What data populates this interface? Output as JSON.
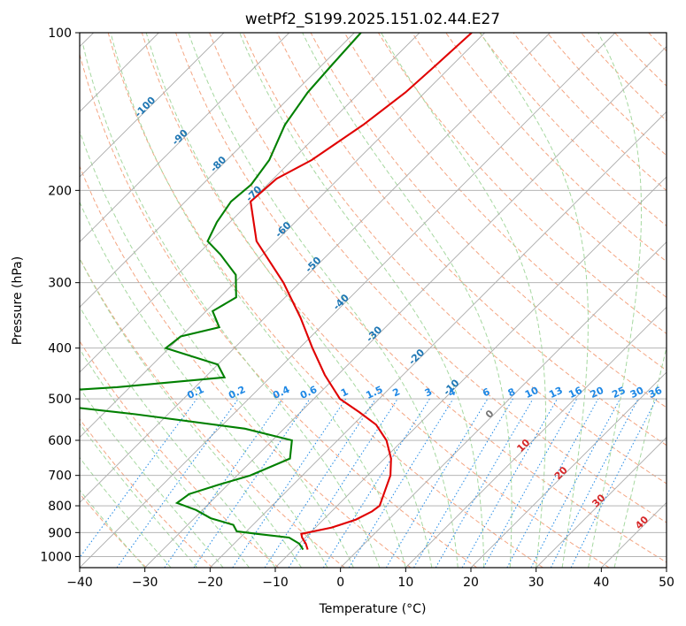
{
  "chart_data": {
    "type": "line",
    "title": "wetPf2_S199.2025.151.02.44.E27",
    "xlabel": "Temperature (°C)",
    "ylabel": "Pressure (hPa)",
    "xlim": [
      -40,
      50
    ],
    "ylim": [
      1050,
      100
    ],
    "y_scale": "log",
    "skew": true,
    "grid": true,
    "x_ticks": [
      -40,
      -30,
      -20,
      -10,
      0,
      10,
      20,
      30,
      40,
      50
    ],
    "y_ticks": [
      1000,
      900,
      800,
      700,
      600,
      500,
      400,
      300,
      200,
      100
    ],
    "series": [
      {
        "role": "temperature",
        "color": "#e00000",
        "points": [
          {
            "p": 970,
            "t": -7.8
          },
          {
            "p": 945,
            "t": -9.0
          },
          {
            "p": 920,
            "t": -10.5
          },
          {
            "p": 905,
            "t": -11.2
          },
          {
            "p": 880,
            "t": -7.5
          },
          {
            "p": 850,
            "t": -5.0
          },
          {
            "p": 820,
            "t": -3.8
          },
          {
            "p": 800,
            "t": -3.5
          },
          {
            "p": 700,
            "t": -6.5
          },
          {
            "p": 650,
            "t": -9.0
          },
          {
            "p": 600,
            "t": -12.5
          },
          {
            "p": 560,
            "t": -16.5
          },
          {
            "p": 530,
            "t": -21.0
          },
          {
            "p": 500,
            "t": -26.0
          },
          {
            "p": 450,
            "t": -32.0
          },
          {
            "p": 400,
            "t": -38.0
          },
          {
            "p": 350,
            "t": -44.5
          },
          {
            "p": 300,
            "t": -52.5
          },
          {
            "p": 250,
            "t": -63.0
          },
          {
            "p": 210,
            "t": -70.0
          },
          {
            "p": 190,
            "t": -69.5
          },
          {
            "p": 175,
            "t": -67.0
          },
          {
            "p": 150,
            "t": -64.5
          },
          {
            "p": 130,
            "t": -63.0
          },
          {
            "p": 115,
            "t": -62.5
          },
          {
            "p": 100,
            "t": -62.0
          }
        ]
      },
      {
        "role": "dewpoint",
        "color": "#008000",
        "points": [
          {
            "p": 970,
            "t": -8.5
          },
          {
            "p": 945,
            "t": -10.0
          },
          {
            "p": 920,
            "t": -12.5
          },
          {
            "p": 905,
            "t": -18.0
          },
          {
            "p": 895,
            "t": -21.5
          },
          {
            "p": 870,
            "t": -23.0
          },
          {
            "p": 845,
            "t": -27.5
          },
          {
            "p": 815,
            "t": -31.0
          },
          {
            "p": 790,
            "t": -35.0
          },
          {
            "p": 760,
            "t": -34.5
          },
          {
            "p": 730,
            "t": -31.5
          },
          {
            "p": 700,
            "t": -28.0
          },
          {
            "p": 650,
            "t": -24.5
          },
          {
            "p": 600,
            "t": -27.0
          },
          {
            "p": 570,
            "t": -36.0
          },
          {
            "p": 535,
            "t": -55.0
          },
          {
            "p": 505,
            "t": -75.0
          },
          {
            "p": 497,
            "t": -85.0
          },
          {
            "p": 475,
            "t": -62.0
          },
          {
            "p": 455,
            "t": -47.0
          },
          {
            "p": 430,
            "t": -50.0
          },
          {
            "p": 400,
            "t": -60.5
          },
          {
            "p": 380,
            "t": -60.0
          },
          {
            "p": 365,
            "t": -55.5
          },
          {
            "p": 340,
            "t": -59.0
          },
          {
            "p": 320,
            "t": -57.5
          },
          {
            "p": 290,
            "t": -61.0
          },
          {
            "p": 265,
            "t": -66.5
          },
          {
            "p": 250,
            "t": -70.5
          },
          {
            "p": 230,
            "t": -72.0
          },
          {
            "p": 210,
            "t": -73.0
          },
          {
            "p": 195,
            "t": -72.5
          },
          {
            "p": 175,
            "t": -73.5
          },
          {
            "p": 150,
            "t": -76.5
          },
          {
            "p": 130,
            "t": -78.0
          },
          {
            "p": 115,
            "t": -78.5
          },
          {
            "p": 100,
            "t": -79.0
          }
        ]
      }
    ],
    "isotherm_labels": [
      "-100",
      "-90",
      "-80",
      "-70",
      "-60",
      "-50",
      "-40",
      "-30",
      "-20",
      "-10",
      "0",
      "10",
      "20",
      "30",
      "40"
    ],
    "mixing_ratio_labels": [
      "0.1",
      "0.2",
      "0.4",
      "0.6",
      "1",
      "1.5",
      "2",
      "3",
      "4",
      "6",
      "8",
      "10",
      "13",
      "16",
      "20",
      "25",
      "30",
      "36"
    ],
    "colors": {
      "isotherm": "#aaaaaa",
      "dry_adiabat": "#f4a582",
      "moist_adiabat": "#a6d8a0",
      "mixing_ratio": "#1e88e5",
      "neg_isotherm_label": "#1f77b4",
      "pos_isotherm_label": "#d62728",
      "zero_isotherm_label": "#777777",
      "mixing_label": "#1e88e5"
    }
  }
}
